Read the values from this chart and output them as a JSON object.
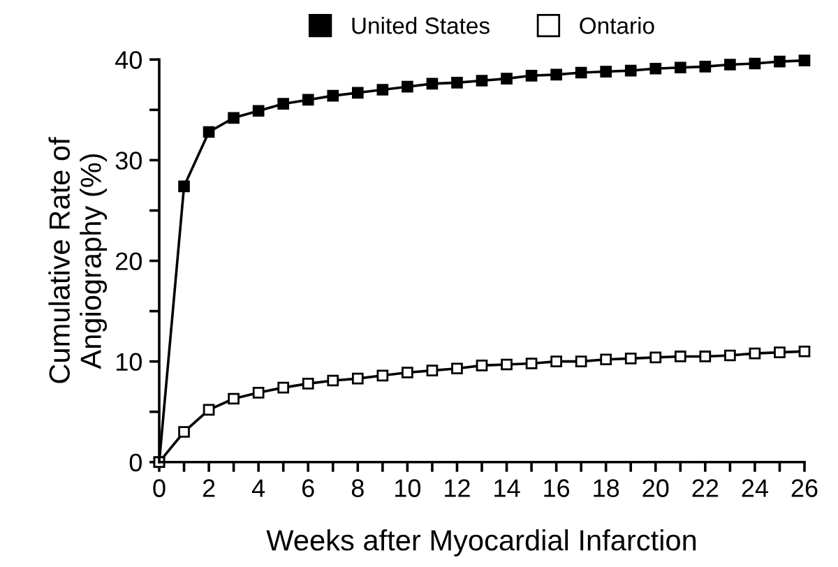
{
  "chart_data": {
    "type": "line",
    "xlabel": "Weeks after Myocardial Infarction",
    "ylabel": "Cumulative Rate of\nAngiography (%)",
    "x": [
      0,
      1,
      2,
      3,
      4,
      5,
      6,
      7,
      8,
      9,
      10,
      11,
      12,
      13,
      14,
      15,
      16,
      17,
      18,
      19,
      20,
      21,
      22,
      23,
      24,
      25,
      26
    ],
    "series": [
      {
        "name": "United States",
        "color": "#000000",
        "values": [
          0,
          27.4,
          32.8,
          34.2,
          34.9,
          35.6,
          36.0,
          36.4,
          36.7,
          37.0,
          37.3,
          37.6,
          37.7,
          37.9,
          38.1,
          38.4,
          38.5,
          38.7,
          38.8,
          38.9,
          39.1,
          39.2,
          39.3,
          39.5,
          39.6,
          39.8,
          39.9
        ]
      },
      {
        "name": "Ontario",
        "color": "#ffffff",
        "values": [
          0,
          3.0,
          5.2,
          6.3,
          6.9,
          7.4,
          7.8,
          8.1,
          8.3,
          8.6,
          8.9,
          9.1,
          9.3,
          9.6,
          9.7,
          9.8,
          10.0,
          10.0,
          10.2,
          10.3,
          10.4,
          10.5,
          10.5,
          10.6,
          10.8,
          10.9,
          11.0
        ]
      }
    ],
    "xlim": [
      0,
      26
    ],
    "xticks": [
      0,
      {
        "value": 1,
        "label": null
      },
      2,
      {
        "value": 3,
        "label": null
      },
      4,
      {
        "value": 5,
        "label": null
      },
      6,
      {
        "value": 7,
        "label": null
      },
      8,
      {
        "value": 9,
        "label": null
      },
      10,
      {
        "value": 11,
        "label": null
      },
      12,
      {
        "value": 13,
        "label": null
      },
      14,
      {
        "value": 15,
        "label": null
      },
      16,
      {
        "value": 17,
        "label": null
      },
      18,
      {
        "value": 19,
        "label": null
      },
      20,
      {
        "value": 21,
        "label": null
      },
      22,
      {
        "value": 23,
        "label": null
      },
      24,
      {
        "value": 25,
        "label": null
      },
      26
    ],
    "ylim": [
      0,
      40
    ],
    "yticks": [
      0,
      {
        "value": 5,
        "label": null
      },
      10,
      {
        "value": 15,
        "label": null
      },
      20,
      {
        "value": 25,
        "label": null
      },
      30,
      {
        "value": 35,
        "label": null
      },
      40
    ],
    "marker": "square",
    "line_style": "solid",
    "grid": false,
    "legend": "top"
  }
}
